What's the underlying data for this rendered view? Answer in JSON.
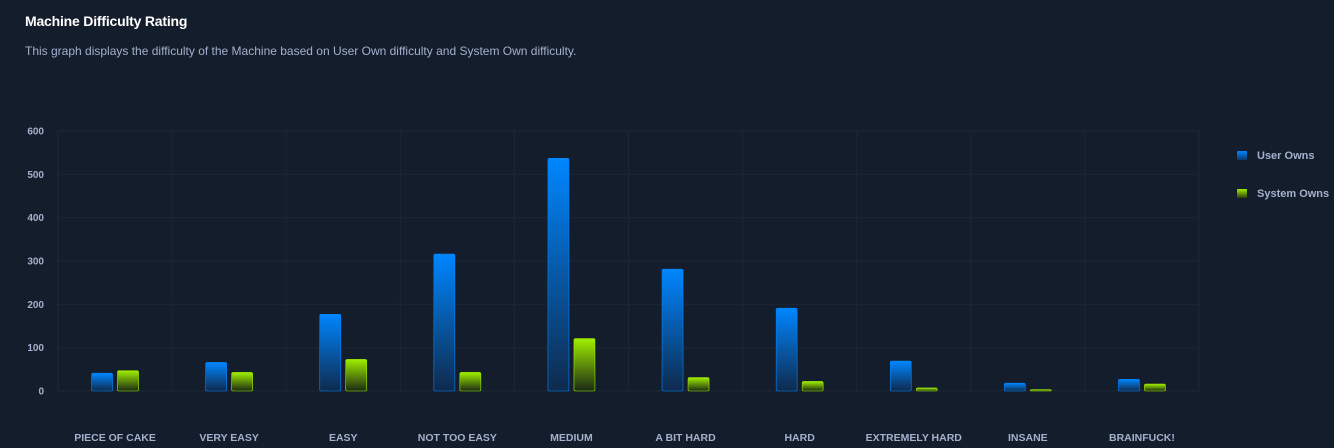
{
  "header": {
    "title": "Machine Difficulty Rating",
    "subtitle": "This graph displays the difficulty of the Machine based on User Own difficulty and System Own difficulty."
  },
  "colors": {
    "background": "#141d2b",
    "grid": "#1c2637",
    "axis_text": "#a4b1cd",
    "user_owns_top": "#0086ff",
    "user_owns_bottom": "#141d2b",
    "system_owns_top": "#9fef00",
    "system_owns_bottom": "#141d2b"
  },
  "legend": {
    "items": [
      {
        "label": "User Owns",
        "color": "#0086ff"
      },
      {
        "label": "System Owns",
        "color": "#9fef00"
      }
    ]
  },
  "chart_data": {
    "type": "bar",
    "title": "Machine Difficulty Rating",
    "subtitle": "This graph displays the difficulty of the Machine based on User Own difficulty and System Own difficulty.",
    "categories": [
      "PIECE OF CAKE",
      "VERY EASY",
      "EASY",
      "NOT TOO EASY",
      "MEDIUM",
      "A BIT HARD",
      "HARD",
      "EXTREMELY HARD",
      "INSANE",
      "BRAINFUCK!"
    ],
    "series": [
      {
        "name": "User Owns",
        "values": [
          41,
          66,
          177,
          316,
          537,
          281,
          191,
          69,
          18,
          27
        ]
      },
      {
        "name": "System Owns",
        "values": [
          47,
          43,
          73,
          43,
          121,
          31,
          22,
          7,
          3,
          16
        ]
      }
    ],
    "yticks": [
      0,
      100,
      200,
      300,
      400,
      500,
      600
    ],
    "ylim": [
      0,
      600
    ],
    "grid": true,
    "legend_position": "right"
  }
}
